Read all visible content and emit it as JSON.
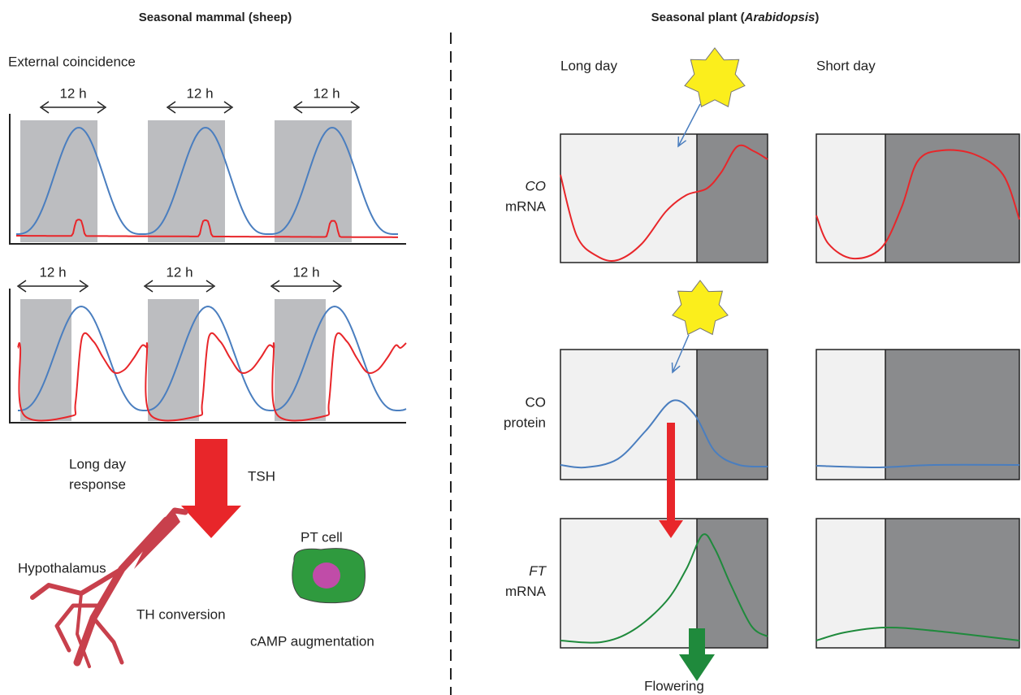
{
  "left": {
    "title": "Seasonal mammal (sheep)",
    "subtitle": "External coincidence",
    "top_periods": [
      "12 h",
      "12 h",
      "12 h"
    ],
    "bottom_periods": [
      "12 h",
      "12 h",
      "12 h"
    ],
    "response_lines": [
      "Long day",
      "response"
    ],
    "hormone": "TSH",
    "hypothalamus": "Hypothalamus",
    "th_conversion": "TH conversion",
    "pt_cell": "PT cell",
    "camp": "cAMP augmentation"
  },
  "right": {
    "title_prefix": "Seasonal plant (",
    "title_species": "Arabidopsis",
    "title_suffix": ")",
    "long_day": "Long day",
    "short_day": "Short day",
    "rows": [
      {
        "gene": "CO",
        "kind": "mRNA"
      },
      {
        "gene": "CO",
        "kind": "protein"
      },
      {
        "gene": "FT",
        "kind": "mRNA"
      }
    ],
    "output": "Flowering"
  }
}
